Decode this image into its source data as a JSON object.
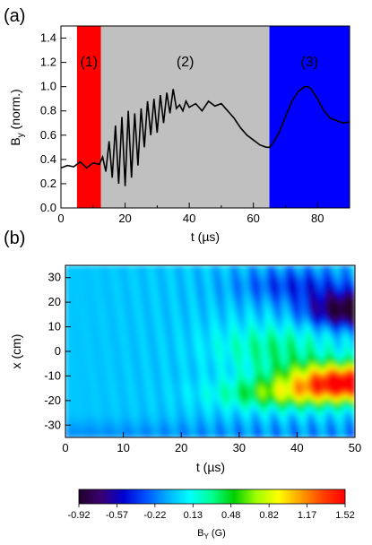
{
  "chart_data": [
    {
      "panel_label": "(a)",
      "type": "line",
      "xlabel": "t (µs)",
      "ylabel": "B_y (norm.)",
      "ylabel_main": "B",
      "ylabel_sub": "y",
      "ylabel_rest": " (norm.)",
      "xlim": [
        0,
        90
      ],
      "ylim": [
        0.0,
        1.5
      ],
      "xticks": [
        0,
        20,
        40,
        60,
        80
      ],
      "yticks": [
        0.0,
        0.2,
        0.4,
        0.6,
        0.8,
        1.0,
        1.2,
        1.4
      ],
      "xtick_labels": [
        "0",
        "20",
        "40",
        "60",
        "80"
      ],
      "ytick_labels": [
        "0.0",
        "0.2",
        "0.4",
        "0.6",
        "0.8",
        "1.0",
        "1.2",
        "1.4"
      ],
      "regions": [
        {
          "label": "(1)",
          "x0": 5,
          "x1": 12.5,
          "color": "#ff0000"
        },
        {
          "label": "(2)",
          "x0": 12.5,
          "x1": 65,
          "color": "#c0c0c0"
        },
        {
          "label": "(3)",
          "x0": 65,
          "x1": 90,
          "color": "#0000ff"
        }
      ],
      "series": [
        {
          "x": [
            0,
            2,
            4,
            6,
            8,
            10,
            12,
            13,
            14,
            15,
            16,
            17,
            18,
            19,
            20,
            21,
            22,
            23,
            24,
            25,
            26,
            27,
            28,
            29,
            30,
            31,
            32,
            33,
            34,
            35,
            36,
            37,
            38,
            39,
            40,
            42,
            44,
            46,
            48,
            50,
            52,
            54,
            56,
            58,
            60,
            62,
            64,
            65,
            66,
            68,
            70,
            72,
            74,
            76,
            77,
            78,
            80,
            82,
            84,
            86,
            88,
            90
          ],
          "y": [
            0.33,
            0.35,
            0.34,
            0.38,
            0.33,
            0.37,
            0.36,
            0.42,
            0.3,
            0.55,
            0.25,
            0.68,
            0.2,
            0.75,
            0.18,
            0.8,
            0.25,
            0.78,
            0.35,
            0.82,
            0.5,
            0.88,
            0.6,
            0.9,
            0.62,
            0.93,
            0.7,
            0.95,
            0.78,
            0.98,
            0.82,
            0.85,
            0.8,
            0.88,
            0.83,
            0.86,
            0.8,
            0.88,
            0.84,
            0.86,
            0.8,
            0.74,
            0.66,
            0.6,
            0.56,
            0.52,
            0.5,
            0.5,
            0.53,
            0.62,
            0.75,
            0.88,
            0.96,
            1.0,
            1.0,
            0.98,
            0.9,
            0.8,
            0.74,
            0.72,
            0.7,
            0.71
          ]
        }
      ]
    },
    {
      "panel_label": "(b)",
      "type": "heatmap",
      "xlabel": "t (µs)",
      "ylabel": "x (cm)",
      "xlim": [
        0,
        50
      ],
      "ylim": [
        -35,
        35
      ],
      "xticks": [
        0,
        10,
        20,
        30,
        40,
        50
      ],
      "yticks": [
        -30,
        -20,
        -10,
        0,
        10,
        20,
        30
      ],
      "xtick_labels": [
        "0",
        "10",
        "20",
        "30",
        "40",
        "50"
      ],
      "ytick_labels": [
        "-30",
        "-20",
        "-10",
        "0",
        "10",
        "20",
        "30"
      ],
      "colorbar": {
        "label": "B_Y (G)",
        "label_main": "B",
        "label_sub": "Y",
        "label_rest": " (G)",
        "range": [
          -0.92,
          1.52
        ],
        "tick_labels": [
          "-0.92",
          "-0.57",
          "-0.22",
          "0.13",
          "0.48",
          "0.82",
          "1.17",
          "1.52"
        ],
        "colors": [
          "#20002a",
          "#3b0070",
          "#0000d0",
          "#0050ff",
          "#00b0ff",
          "#00ffff",
          "#00ff90",
          "#00d000",
          "#a0ff00",
          "#ffff00",
          "#ffa000",
          "#ff4000",
          "#ff0000"
        ]
      }
    }
  ]
}
